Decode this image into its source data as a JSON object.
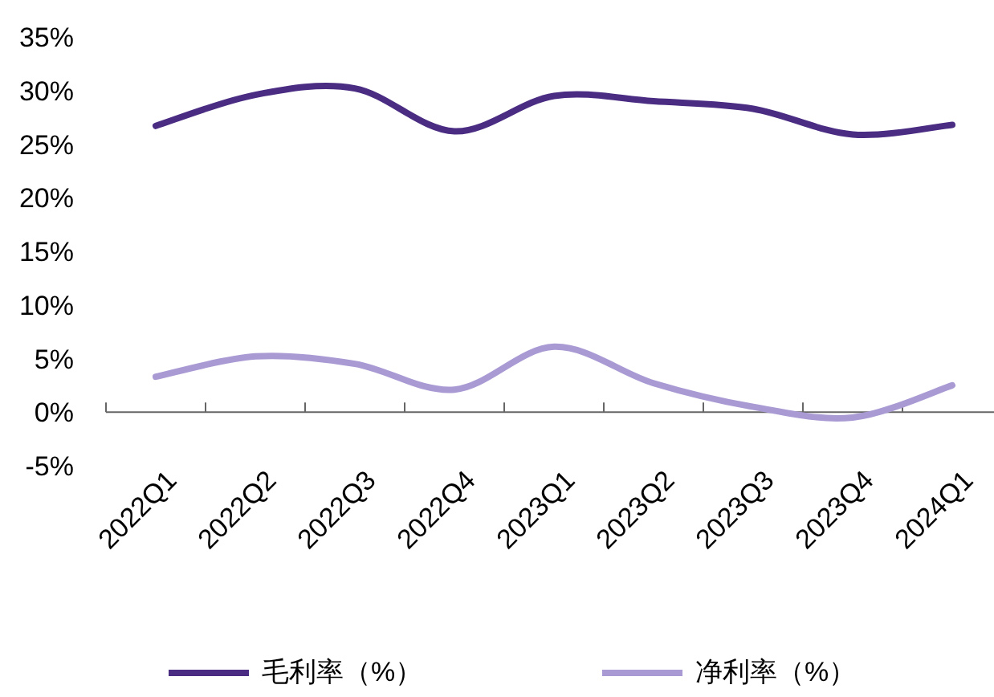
{
  "chart_data": {
    "type": "line",
    "categories": [
      "2022Q1",
      "2022Q2",
      "2022Q3",
      "2022Q4",
      "2023Q1",
      "2023Q2",
      "2023Q3",
      "2023Q4",
      "2024Q1"
    ],
    "series": [
      {
        "name": "毛利率（%）",
        "color": "#4b2c83",
        "values": [
          26.7,
          29.6,
          30.2,
          26.2,
          29.5,
          29.0,
          28.3,
          25.9,
          26.8
        ]
      },
      {
        "name": "净利率（%）",
        "color": "#a99ad4",
        "values": [
          3.3,
          5.2,
          4.5,
          2.1,
          6.1,
          2.7,
          0.5,
          -0.5,
          2.5
        ]
      }
    ],
    "ylim": [
      -5,
      35
    ],
    "yticks": [
      {
        "value": -5,
        "label": "-5%"
      },
      {
        "value": 0,
        "label": "0%"
      },
      {
        "value": 5,
        "label": "5%"
      },
      {
        "value": 10,
        "label": "10%"
      },
      {
        "value": 15,
        "label": "15%"
      },
      {
        "value": 20,
        "label": "20%"
      },
      {
        "value": 25,
        "label": "25%"
      },
      {
        "value": 30,
        "label": "30%"
      },
      {
        "value": 35,
        "label": "35%"
      }
    ],
    "grid": false,
    "legend": "bottom",
    "marker": "none",
    "line_style": "solid"
  }
}
